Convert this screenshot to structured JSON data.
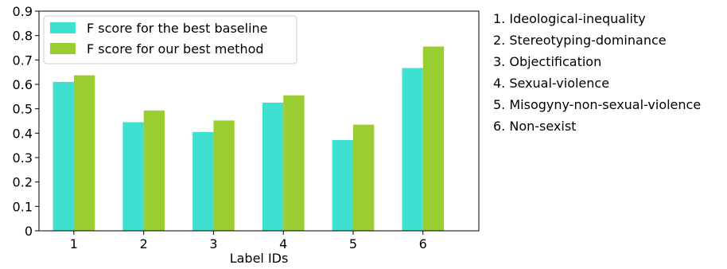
{
  "chart_data": {
    "type": "bar",
    "categories": [
      "1",
      "2",
      "3",
      "4",
      "5",
      "6"
    ],
    "series": [
      {
        "name": "F score for the best baseline",
        "color": "#40E0D0",
        "values": [
          0.61,
          0.445,
          0.405,
          0.525,
          0.372,
          0.667
        ]
      },
      {
        "name": "F score for our best method",
        "color": "#9ACD32",
        "values": [
          0.637,
          0.493,
          0.452,
          0.555,
          0.435,
          0.755
        ]
      }
    ],
    "xlabel": "Label IDs",
    "ylabel": "",
    "ylim": [
      0,
      0.9
    ],
    "yticks": [
      "0",
      "0.1",
      "0.2",
      "0.3",
      "0.4",
      "0.5",
      "0.6",
      "0.7",
      "0.8",
      "0.9"
    ],
    "legend_position": "top-left",
    "grid": false
  },
  "label_notes": [
    "1. Ideological-inequality",
    "2. Stereotyping-dominance",
    "3. Objectification",
    "4. Sexual-violence",
    "5. Misogyny-non-sexual-violence",
    "6. Non-sexist"
  ]
}
